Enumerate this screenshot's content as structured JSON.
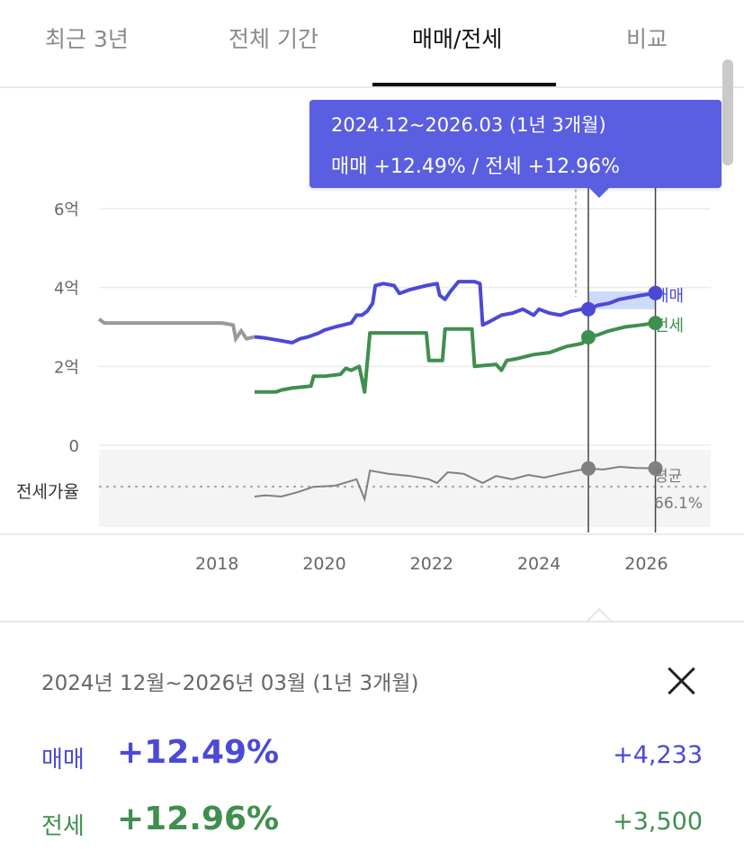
{
  "tabs": [
    {
      "label": "최근 3년"
    },
    {
      "label": "전체 기간"
    },
    {
      "label": "매매/전세"
    },
    {
      "label": "비교"
    }
  ],
  "active_tab": "매매/전세",
  "colors": {
    "sale": "#4b49d6",
    "jeonse": "#3f8f4f",
    "ratio": "#808080",
    "tooltip_bg": "#5a5ee0",
    "prior": "#999999"
  },
  "tooltip": {
    "range": "2024.12~2026.03 (1년 3개월)",
    "text": "매매 +12.49%  /  전세 +12.96%"
  },
  "chart_data": {
    "type": "line",
    "y_ticks": [
      {
        "value": 0,
        "label": "0"
      },
      {
        "value": 2,
        "label": "2억"
      },
      {
        "value": 4,
        "label": "4억"
      },
      {
        "value": 6,
        "label": "6억"
      }
    ],
    "ylim": [
      0,
      6
    ],
    "x_ticks": [
      "2018",
      "2020",
      "2022",
      "2024",
      "2026"
    ],
    "xlim": [
      2015.8,
      2027.2
    ],
    "selection": {
      "start": 2024.92,
      "end": 2026.17
    },
    "series": [
      {
        "name": "매매",
        "label": "매매",
        "points": [
          [
            2018.7,
            2.75
          ],
          [
            2018.9,
            2.72
          ],
          [
            2019.2,
            2.65
          ],
          [
            2019.4,
            2.6
          ],
          [
            2019.55,
            2.7
          ],
          [
            2019.7,
            2.75
          ],
          [
            2019.9,
            2.85
          ],
          [
            2020.0,
            2.92
          ],
          [
            2020.2,
            3.0
          ],
          [
            2020.35,
            3.05
          ],
          [
            2020.5,
            3.1
          ],
          [
            2020.6,
            3.3
          ],
          [
            2020.7,
            3.3
          ],
          [
            2020.8,
            3.4
          ],
          [
            2020.9,
            3.6
          ],
          [
            2020.95,
            4.05
          ],
          [
            2021.1,
            4.1
          ],
          [
            2021.3,
            4.05
          ],
          [
            2021.4,
            3.85
          ],
          [
            2021.6,
            3.95
          ],
          [
            2021.9,
            4.05
          ],
          [
            2022.1,
            4.1
          ],
          [
            2022.15,
            3.8
          ],
          [
            2022.25,
            3.7
          ],
          [
            2022.35,
            3.9
          ],
          [
            2022.5,
            4.15
          ],
          [
            2022.8,
            4.15
          ],
          [
            2022.9,
            4.1
          ],
          [
            2022.95,
            3.05
          ],
          [
            2023.1,
            3.15
          ],
          [
            2023.3,
            3.3
          ],
          [
            2023.5,
            3.35
          ],
          [
            2023.7,
            3.45
          ],
          [
            2023.9,
            3.3
          ],
          [
            2024.0,
            3.45
          ],
          [
            2024.2,
            3.35
          ],
          [
            2024.4,
            3.3
          ],
          [
            2024.6,
            3.4
          ],
          [
            2024.8,
            3.45
          ],
          [
            2024.92,
            3.45
          ],
          [
            2025.1,
            3.55
          ],
          [
            2025.3,
            3.6
          ],
          [
            2025.5,
            3.7
          ],
          [
            2025.7,
            3.75
          ],
          [
            2025.9,
            3.8
          ],
          [
            2026.17,
            3.86
          ]
        ]
      },
      {
        "name": "전세",
        "label": "전세",
        "points": [
          [
            2018.7,
            1.35
          ],
          [
            2019.1,
            1.35
          ],
          [
            2019.2,
            1.4
          ],
          [
            2019.4,
            1.45
          ],
          [
            2019.75,
            1.5
          ],
          [
            2019.8,
            1.75
          ],
          [
            2020.0,
            1.75
          ],
          [
            2020.3,
            1.8
          ],
          [
            2020.4,
            1.95
          ],
          [
            2020.5,
            1.9
          ],
          [
            2020.65,
            2.0
          ],
          [
            2020.75,
            1.35
          ],
          [
            2020.85,
            2.85
          ],
          [
            2021.9,
            2.85
          ],
          [
            2021.95,
            2.15
          ],
          [
            2022.2,
            2.15
          ],
          [
            2022.25,
            2.95
          ],
          [
            2022.75,
            2.95
          ],
          [
            2022.8,
            2.0
          ],
          [
            2023.2,
            2.05
          ],
          [
            2023.3,
            1.9
          ],
          [
            2023.4,
            2.15
          ],
          [
            2023.6,
            2.2
          ],
          [
            2023.9,
            2.3
          ],
          [
            2024.2,
            2.35
          ],
          [
            2024.5,
            2.5
          ],
          [
            2024.8,
            2.58
          ],
          [
            2024.92,
            2.74
          ],
          [
            2025.1,
            2.8
          ],
          [
            2025.3,
            2.9
          ],
          [
            2025.6,
            3.0
          ],
          [
            2025.9,
            3.05
          ],
          [
            2026.17,
            3.1
          ]
        ]
      },
      {
        "name": "prior",
        "points": [
          [
            2015.8,
            3.2
          ],
          [
            2015.9,
            3.1
          ],
          [
            2016.5,
            3.1
          ],
          [
            2017.0,
            3.1
          ],
          [
            2017.5,
            3.1
          ],
          [
            2018.1,
            3.1
          ],
          [
            2018.3,
            3.05
          ],
          [
            2018.35,
            2.7
          ],
          [
            2018.45,
            2.9
          ],
          [
            2018.55,
            2.7
          ],
          [
            2018.7,
            2.75
          ]
        ]
      }
    ],
    "ratio": {
      "label": "전세가율",
      "average_label": "평균",
      "average_value": "66.1%",
      "points": [
        [
          2018.7,
          0.3
        ],
        [
          2018.9,
          0.32
        ],
        [
          2019.2,
          0.3
        ],
        [
          2019.5,
          0.38
        ],
        [
          2019.8,
          0.48
        ],
        [
          2020.2,
          0.5
        ],
        [
          2020.6,
          0.62
        ],
        [
          2020.75,
          0.25
        ],
        [
          2020.85,
          0.78
        ],
        [
          2021.2,
          0.72
        ],
        [
          2021.6,
          0.68
        ],
        [
          2021.95,
          0.62
        ],
        [
          2022.1,
          0.55
        ],
        [
          2022.3,
          0.75
        ],
        [
          2022.6,
          0.72
        ],
        [
          2022.85,
          0.6
        ],
        [
          2022.95,
          0.55
        ],
        [
          2023.2,
          0.68
        ],
        [
          2023.5,
          0.62
        ],
        [
          2023.8,
          0.7
        ],
        [
          2024.1,
          0.65
        ],
        [
          2024.4,
          0.72
        ],
        [
          2024.7,
          0.78
        ],
        [
          2024.92,
          0.82
        ],
        [
          2025.2,
          0.8
        ],
        [
          2025.5,
          0.85
        ],
        [
          2025.8,
          0.83
        ],
        [
          2026.17,
          0.82
        ]
      ]
    }
  },
  "summary": {
    "range": "2024년 12월~2026년 03월 (1년 3개월)",
    "sale": {
      "label": "매매",
      "pct": "+12.49%",
      "amount": "+4,233"
    },
    "jeonse": {
      "label": "전세",
      "pct": "+12.96%",
      "amount": "+3,500"
    }
  }
}
